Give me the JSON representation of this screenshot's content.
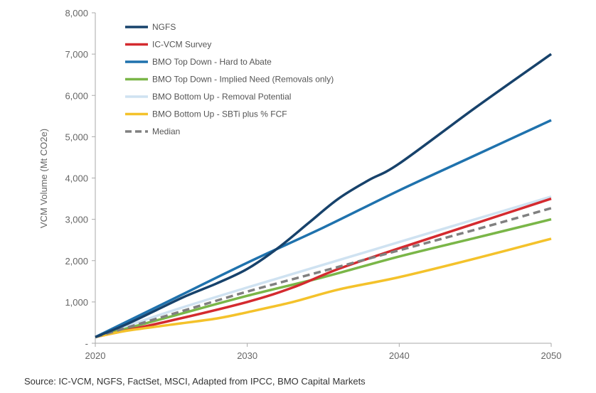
{
  "chart_data": {
    "type": "line",
    "ylabel": "VCM Volume (Mt CO2e)",
    "xlim": [
      2020,
      2050
    ],
    "ylim": [
      0,
      8000
    ],
    "x_ticks": [
      2020,
      2030,
      2040,
      2050
    ],
    "y_ticks": [
      0,
      1000,
      2000,
      3000,
      4000,
      5000,
      6000,
      7000,
      8000
    ],
    "y_tick_labels": [
      "-",
      "1,000",
      "2,000",
      "3,000",
      "4,000",
      "5,000",
      "6,000",
      "7,000",
      "8,000"
    ],
    "x_tick_labels": [
      "2020",
      "2030",
      "2040",
      "2050"
    ],
    "grid": false,
    "legend_position": "top-left",
    "series": [
      {
        "name": "NGFS",
        "color": "#17426b",
        "dashed": false,
        "x": [
          2020,
          2022,
          2024,
          2026,
          2028,
          2030,
          2032,
          2034,
          2036,
          2038,
          2040,
          2045,
          2050
        ],
        "y": [
          150,
          450,
          800,
          1150,
          1450,
          1800,
          2300,
          2900,
          3500,
          3950,
          4350,
          5700,
          7000
        ]
      },
      {
        "name": "IC-VCM Survey",
        "color": "#d42a2f",
        "dashed": false,
        "x": [
          2020,
          2025,
          2030,
          2033,
          2036,
          2040,
          2045,
          2050
        ],
        "y": [
          150,
          550,
          1000,
          1350,
          1800,
          2300,
          2900,
          3500
        ]
      },
      {
        "name": "BMO Top Down - Hard to Abate",
        "color": "#1f72ad",
        "dashed": false,
        "x": [
          2020,
          2025,
          2030,
          2035,
          2040,
          2045,
          2050
        ],
        "y": [
          150,
          1050,
          1950,
          2800,
          3700,
          4550,
          5400
        ]
      },
      {
        "name": "BMO Top Down - Implied Need (Removals only)",
        "color": "#7ab648",
        "dashed": false,
        "x": [
          2020,
          2025,
          2030,
          2035,
          2040,
          2045,
          2050
        ],
        "y": [
          150,
          650,
          1150,
          1600,
          2100,
          2550,
          3000
        ]
      },
      {
        "name": "BMO Bottom Up - Removal Potential",
        "color": "#cfe2f1",
        "dashed": false,
        "x": [
          2020,
          2025,
          2030,
          2035,
          2040,
          2045,
          2050
        ],
        "y": [
          150,
          780,
          1350,
          1900,
          2450,
          3000,
          3550
        ]
      },
      {
        "name": "BMO Bottom Up - SBTi plus % FCF",
        "color": "#f4c22b",
        "dashed": false,
        "x": [
          2020,
          2022,
          2025,
          2028,
          2030,
          2033,
          2036,
          2040,
          2045,
          2050
        ],
        "y": [
          150,
          300,
          450,
          600,
          750,
          1000,
          1300,
          1600,
          2050,
          2530
        ]
      },
      {
        "name": "Median",
        "color": "#808080",
        "dashed": true,
        "x": [
          2020,
          2025,
          2030,
          2035,
          2040,
          2045,
          2050
        ],
        "y": [
          150,
          700,
          1250,
          1750,
          2250,
          2750,
          3270
        ]
      }
    ]
  },
  "source": "Source: IC-VCM, NGFS, FactSet, MSCI, Adapted from IPCC, BMO Capital Markets"
}
